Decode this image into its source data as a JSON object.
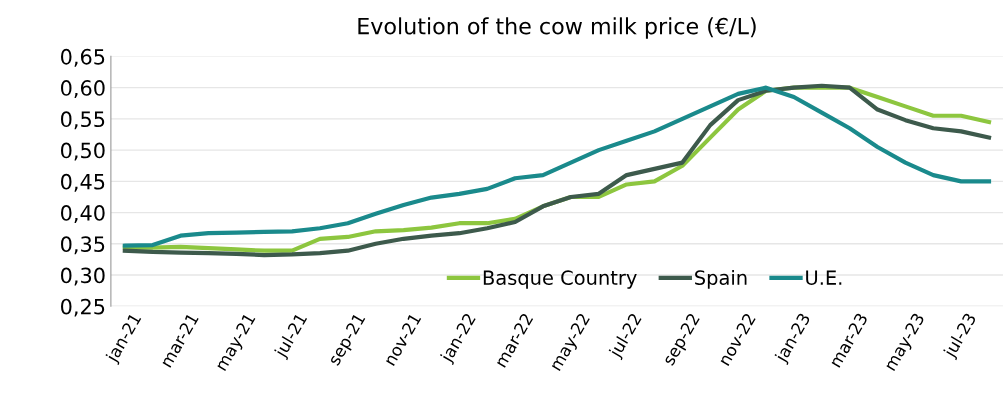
{
  "chart_data": {
    "type": "line",
    "title": "Evolution of the cow milk price (€/L)",
    "categories": [
      "jan-21",
      null,
      "mar-21",
      null,
      "may-21",
      null,
      "jul-21",
      null,
      "sep-21",
      null,
      "nov-21",
      null,
      "jan-22",
      null,
      "mar-22",
      null,
      "may-22",
      null,
      "jul-22",
      null,
      "sep-22",
      null,
      "nov-22",
      null,
      "jan-23",
      null,
      "mar-23",
      null,
      "may-23",
      null,
      "jul-23",
      null
    ],
    "series": [
      {
        "name": "Basque Country",
        "color": "#8dc63f",
        "values": [
          0.344,
          0.344,
          0.345,
          0.343,
          0.341,
          0.339,
          0.339,
          0.358,
          0.361,
          0.37,
          0.372,
          0.376,
          0.383,
          0.383,
          0.39,
          0.41,
          0.425,
          0.425,
          0.445,
          0.45,
          0.475,
          0.52,
          0.565,
          0.595,
          0.6,
          0.6,
          0.6,
          0.585,
          0.57,
          0.555,
          0.555,
          0.545
        ]
      },
      {
        "name": "Spain",
        "color": "#3d5a4c",
        "values": [
          0.339,
          0.337,
          0.336,
          0.335,
          0.334,
          0.332,
          0.333,
          0.335,
          0.339,
          0.35,
          0.358,
          0.363,
          0.367,
          0.375,
          0.385,
          0.41,
          0.425,
          0.43,
          0.46,
          0.47,
          0.48,
          0.54,
          0.58,
          0.595,
          0.6,
          0.603,
          0.6,
          0.565,
          0.548,
          0.535,
          0.53,
          0.52
        ]
      },
      {
        "name": "U.E.",
        "color": "#1a8a8c",
        "values": [
          0.347,
          0.348,
          0.363,
          0.367,
          0.368,
          0.369,
          0.37,
          0.375,
          0.383,
          0.398,
          0.412,
          0.424,
          0.43,
          0.438,
          0.455,
          0.46,
          0.48,
          0.5,
          0.515,
          0.53,
          0.55,
          0.57,
          0.59,
          0.6,
          0.585,
          0.56,
          0.535,
          0.505,
          0.48,
          0.46,
          0.45,
          0.45
        ]
      }
    ],
    "ylim": [
      0.25,
      0.65
    ],
    "yticks": [
      {
        "value": 0.25,
        "label": "0,25"
      },
      {
        "value": 0.3,
        "label": "0,30"
      },
      {
        "value": 0.35,
        "label": "0,35"
      },
      {
        "value": 0.4,
        "label": "0,40"
      },
      {
        "value": 0.45,
        "label": "0,45"
      },
      {
        "value": 0.5,
        "label": "0,50"
      },
      {
        "value": 0.55,
        "label": "0,55"
      },
      {
        "value": 0.6,
        "label": "0,60"
      },
      {
        "value": 0.65,
        "label": "0,65"
      }
    ],
    "grid": "y",
    "legend": "bottom",
    "marker": "none",
    "line_style": "solid"
  }
}
